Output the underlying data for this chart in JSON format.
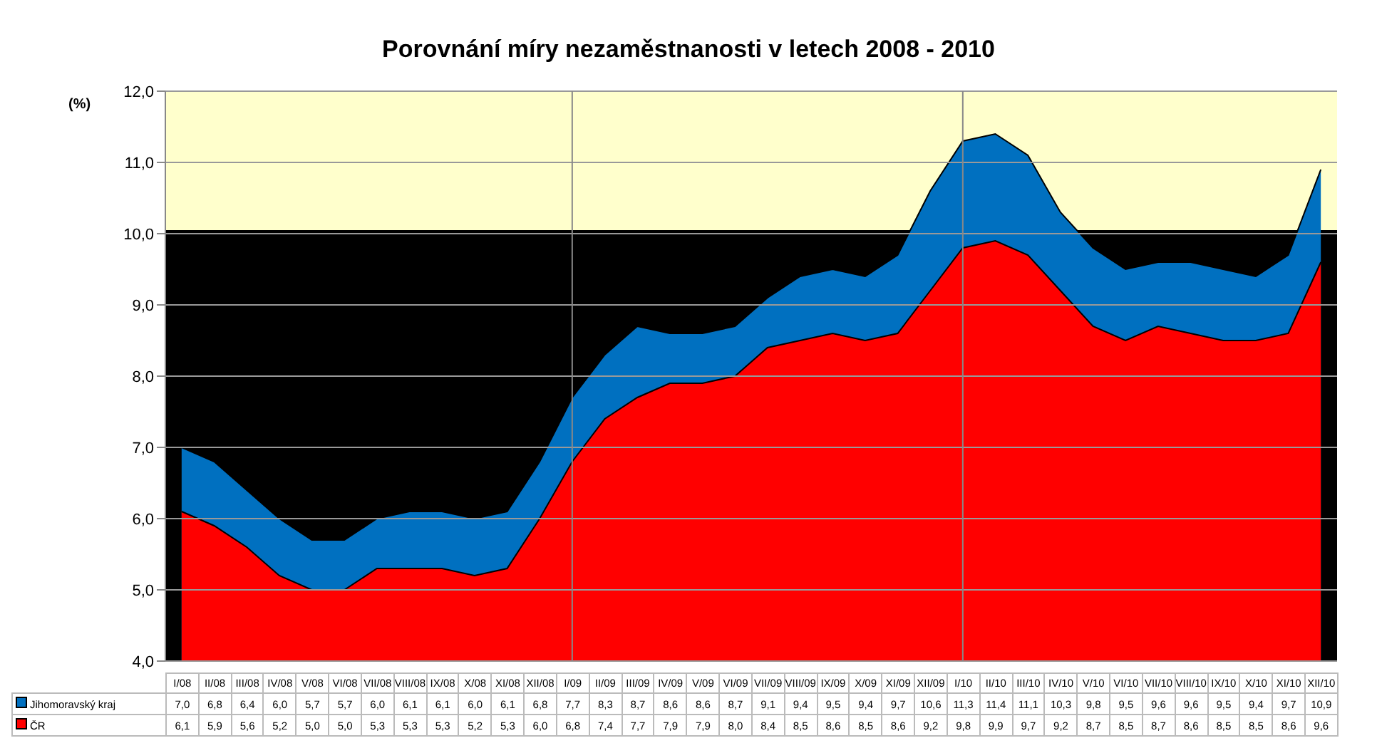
{
  "chart_data": {
    "type": "area",
    "title": "Porovnání míry nezaměstnanosti v letech 2008 - 2010",
    "ylabel": "(%)",
    "categories": [
      "I/08",
      "II/08",
      "III/08",
      "IV/08",
      "V/08",
      "VI/08",
      "VII/08",
      "VIII/08",
      "IX/08",
      "X/08",
      "XI/08",
      "XII/08",
      "I/09",
      "II/09",
      "III/09",
      "IV/09",
      "V/09",
      "VI/09",
      "VII/09",
      "VIII/09",
      "IX/09",
      "X/09",
      "XI/09",
      "XII/09",
      "I/10",
      "II/10",
      "III/10",
      "IV/10",
      "V/10",
      "VI/10",
      "VII/10",
      "VIII/10",
      "IX/10",
      "X/10",
      "XI/10",
      "XII/10"
    ],
    "series": [
      {
        "name": "Jihomoravský kraj",
        "color": "#0070c0",
        "values": [
          7.0,
          6.8,
          6.4,
          6.0,
          5.7,
          5.7,
          6.0,
          6.1,
          6.1,
          6.0,
          6.1,
          6.8,
          7.7,
          8.3,
          8.7,
          8.6,
          8.6,
          8.7,
          9.1,
          9.4,
          9.5,
          9.4,
          9.7,
          10.6,
          11.3,
          11.4,
          11.1,
          10.3,
          9.8,
          9.5,
          9.6,
          9.6,
          9.5,
          9.4,
          9.7,
          10.9
        ],
        "value_labels": [
          "7,0",
          "6,8",
          "6,4",
          "6,0",
          "5,7",
          "5,7",
          "6,0",
          "6,1",
          "6,1",
          "6,0",
          "6,1",
          "6,8",
          "7,7",
          "8,3",
          "8,7",
          "8,6",
          "8,6",
          "8,7",
          "9,1",
          "9,4",
          "9,5",
          "9,4",
          "9,7",
          "10,6",
          "11,3",
          "11,4",
          "11,1",
          "10,3",
          "9,8",
          "9,5",
          "9,6",
          "9,6",
          "9,5",
          "9,4",
          "9,7",
          "10,9"
        ]
      },
      {
        "name": "ČR",
        "color": "#ff0000",
        "values": [
          6.1,
          5.9,
          5.6,
          5.2,
          5.0,
          5.0,
          5.3,
          5.3,
          5.3,
          5.2,
          5.3,
          6.0,
          6.8,
          7.4,
          7.7,
          7.9,
          7.9,
          8.0,
          8.4,
          8.5,
          8.6,
          8.5,
          8.6,
          9.2,
          9.8,
          9.9,
          9.7,
          9.2,
          8.7,
          8.5,
          8.7,
          8.6,
          8.5,
          8.5,
          8.6,
          9.6
        ],
        "value_labels": [
          "6,1",
          "5,9",
          "5,6",
          "5,2",
          "5,0",
          "5,0",
          "5,3",
          "5,3",
          "5,3",
          "5,2",
          "5,3",
          "6,0",
          "6,8",
          "7,4",
          "7,7",
          "7,9",
          "7,9",
          "8,0",
          "8,4",
          "8,5",
          "8,6",
          "8,5",
          "8,6",
          "9,2",
          "9,8",
          "9,9",
          "9,7",
          "9,2",
          "8,7",
          "8,5",
          "8,7",
          "8,6",
          "8,5",
          "8,5",
          "8,6",
          "9,6"
        ]
      }
    ],
    "ylim": [
      4,
      12
    ],
    "yticks": [
      {
        "value": 4,
        "label": "4,0"
      },
      {
        "value": 5,
        "label": "5,0"
      },
      {
        "value": 6,
        "label": "6,0"
      },
      {
        "value": 7,
        "label": "7,0"
      },
      {
        "value": 8,
        "label": "8,0"
      },
      {
        "value": 9,
        "label": "9,0"
      },
      {
        "value": 10,
        "label": "10,0"
      },
      {
        "value": 11,
        "label": "11,0"
      },
      {
        "value": 12,
        "label": "12,0"
      }
    ],
    "grid": "y",
    "legend": "bottom",
    "data_labels": true,
    "bands": [
      {
        "axis": "y",
        "from": 4,
        "to": 12,
        "color": "#ffffcc"
      },
      {
        "axis": "y",
        "from": 4,
        "to": 10.05,
        "color": "#000000"
      }
    ],
    "ref_lines": [
      {
        "axis": "x",
        "value": "I/09"
      },
      {
        "axis": "x",
        "value": "I/10"
      }
    ]
  }
}
